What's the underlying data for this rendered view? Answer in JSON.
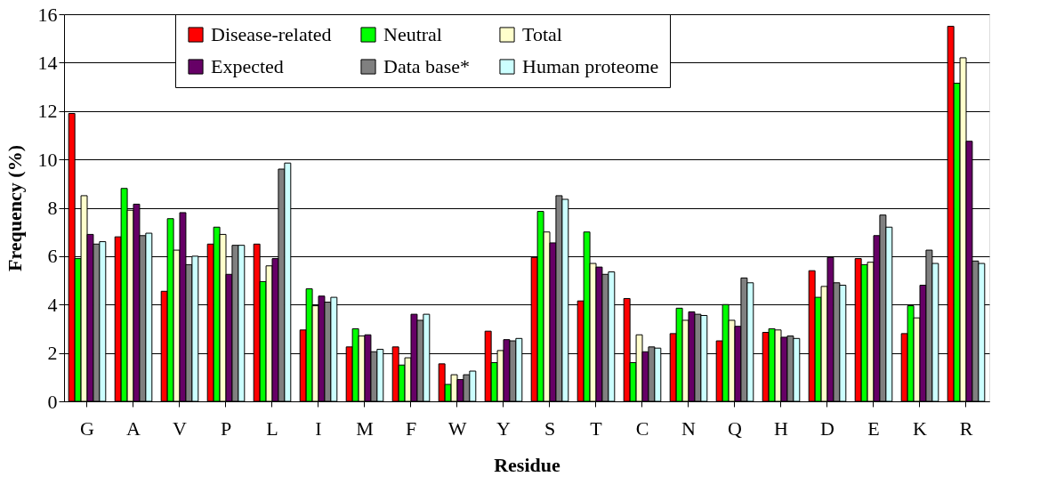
{
  "chart_data": {
    "type": "bar",
    "xlabel": "Residue",
    "ylabel": "Frequency (%)",
    "categories": [
      "G",
      "A",
      "V",
      "P",
      "L",
      "I",
      "M",
      "F",
      "W",
      "Y",
      "S",
      "T",
      "C",
      "N",
      "Q",
      "H",
      "D",
      "E",
      "K",
      "R"
    ],
    "series": [
      {
        "name": "Disease-related",
        "color": "#ff0000",
        "values": [
          11.9,
          6.8,
          4.55,
          6.5,
          6.5,
          2.95,
          2.25,
          2.25,
          1.55,
          2.9,
          5.95,
          4.15,
          4.25,
          2.8,
          2.5,
          2.85,
          5.4,
          5.9,
          2.8,
          15.5
        ]
      },
      {
        "name": "Neutral",
        "color": "#00ff00",
        "values": [
          5.9,
          8.8,
          7.55,
          7.2,
          4.95,
          4.65,
          3.0,
          1.5,
          0.7,
          1.6,
          7.85,
          7.0,
          1.6,
          3.85,
          4.0,
          3.0,
          4.3,
          5.65,
          3.95,
          13.15
        ]
      },
      {
        "name": "Total",
        "color": "#ffffcc",
        "values": [
          8.5,
          7.9,
          6.25,
          6.9,
          5.6,
          3.95,
          2.7,
          1.8,
          1.1,
          2.1,
          7.0,
          5.7,
          2.75,
          3.35,
          3.35,
          2.95,
          4.75,
          5.75,
          3.45,
          14.2
        ]
      },
      {
        "name": "Expected",
        "color": "#660066",
        "values": [
          6.9,
          8.15,
          7.8,
          5.25,
          5.9,
          4.35,
          2.75,
          3.6,
          0.9,
          2.55,
          6.55,
          5.55,
          2.05,
          3.7,
          3.1,
          2.65,
          5.95,
          6.85,
          4.8,
          10.75
        ]
      },
      {
        "name": "Data base*",
        "color": "#808080",
        "values": [
          6.5,
          6.85,
          5.65,
          6.45,
          9.6,
          4.1,
          2.05,
          3.35,
          1.1,
          2.5,
          8.5,
          5.25,
          2.25,
          3.6,
          5.1,
          2.7,
          4.9,
          7.7,
          6.25,
          5.8
        ]
      },
      {
        "name": "Human proteome",
        "color": "#ccffff",
        "values": [
          6.6,
          6.95,
          6.0,
          6.45,
          9.85,
          4.3,
          2.15,
          3.6,
          1.25,
          2.6,
          8.35,
          5.35,
          2.2,
          3.55,
          4.9,
          2.6,
          4.8,
          7.2,
          5.7,
          5.7
        ]
      }
    ],
    "ylim": [
      0,
      16
    ],
    "yticks": [
      0,
      2,
      4,
      6,
      8,
      10,
      12,
      14,
      16
    ],
    "grid": "y",
    "legend": "top"
  }
}
